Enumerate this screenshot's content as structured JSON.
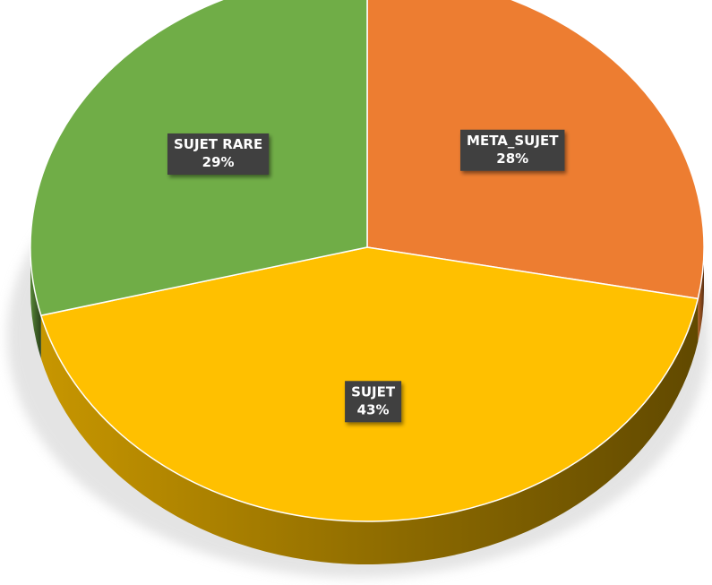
{
  "chart_data": {
    "type": "pie",
    "style": "3d",
    "title": "",
    "legend": "none",
    "slices": [
      {
        "label": "META_SUJET",
        "value": 28,
        "percent_label": "28%",
        "color": "#ED7D31"
      },
      {
        "label": "SUJET",
        "value": 43,
        "percent_label": "43%",
        "color": "#FFC000"
      },
      {
        "label": "SUJET RARE",
        "value": 29,
        "percent_label": "29%",
        "color": "#70AD47"
      }
    ],
    "label_box_color": "#404040",
    "label_text_color": "#FFFFFF"
  }
}
